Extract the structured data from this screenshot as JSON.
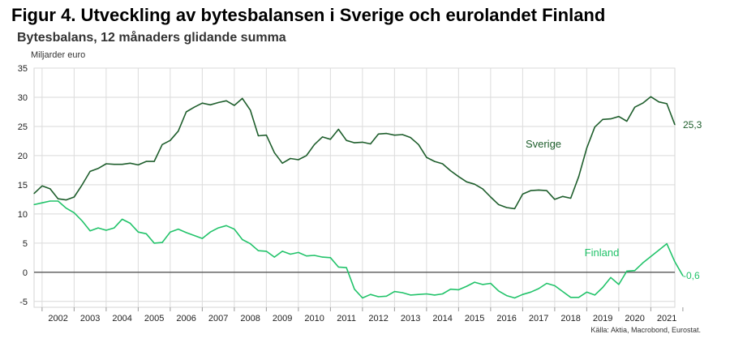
{
  "header": {
    "title": "Figur 4. Utveckling av bytesbalansen i Sverige och eurolandet Finland",
    "subtitle": "Bytesbalans, 12 månaders glidande summa",
    "y_unit": "Miljarder euro"
  },
  "footer": {
    "source": "Källa: Aktia, Macrobond, Eurostat."
  },
  "chart_data": {
    "type": "line",
    "title": "Figur 4. Utveckling av bytesbalansen i Sverige och eurolandet Finland",
    "subtitle": "Bytesbalans, 12 månaders glidande summa",
    "ylabel": "Miljarder euro",
    "xlabel": "",
    "ylim": [
      -6,
      35
    ],
    "xlim": [
      2001.75,
      2021.75
    ],
    "y_ticks": [
      -5,
      0,
      5,
      10,
      15,
      20,
      25,
      30,
      35
    ],
    "x_tick_labels": [
      "2002",
      "2003",
      "2004",
      "2005",
      "2006",
      "2007",
      "2008",
      "2009",
      "2010",
      "2011",
      "2012",
      "2013",
      "2014",
      "2015",
      "2016",
      "2017",
      "2018",
      "2019",
      "2020",
      "2021"
    ],
    "grid": true,
    "zero_line": true,
    "legend": "inline labels",
    "series": [
      {
        "name": "Sverige",
        "color": "#1e5e2c",
        "end_label": "25,3",
        "points": [
          [
            2001.75,
            13.5
          ],
          [
            2002.0,
            14.8
          ],
          [
            2002.25,
            14.3
          ],
          [
            2002.5,
            12.6
          ],
          [
            2002.75,
            12.4
          ],
          [
            2003.0,
            12.9
          ],
          [
            2003.25,
            15.0
          ],
          [
            2003.5,
            17.3
          ],
          [
            2003.75,
            17.8
          ],
          [
            2004.0,
            18.6
          ],
          [
            2004.25,
            18.5
          ],
          [
            2004.5,
            18.5
          ],
          [
            2004.75,
            18.7
          ],
          [
            2005.0,
            18.4
          ],
          [
            2005.25,
            19.0
          ],
          [
            2005.5,
            19.0
          ],
          [
            2005.75,
            21.9
          ],
          [
            2006.0,
            22.6
          ],
          [
            2006.25,
            24.2
          ],
          [
            2006.5,
            27.5
          ],
          [
            2006.75,
            28.3
          ],
          [
            2007.0,
            29.0
          ],
          [
            2007.25,
            28.7
          ],
          [
            2007.5,
            29.1
          ],
          [
            2007.75,
            29.4
          ],
          [
            2008.0,
            28.6
          ],
          [
            2008.25,
            29.8
          ],
          [
            2008.5,
            27.8
          ],
          [
            2008.75,
            23.4
          ],
          [
            2009.0,
            23.5
          ],
          [
            2009.25,
            20.5
          ],
          [
            2009.5,
            18.7
          ],
          [
            2009.75,
            19.5
          ],
          [
            2010.0,
            19.3
          ],
          [
            2010.25,
            20.0
          ],
          [
            2010.5,
            21.9
          ],
          [
            2010.75,
            23.2
          ],
          [
            2011.0,
            22.8
          ],
          [
            2011.25,
            24.5
          ],
          [
            2011.5,
            22.6
          ],
          [
            2011.75,
            22.2
          ],
          [
            2012.0,
            22.3
          ],
          [
            2012.25,
            22.0
          ],
          [
            2012.5,
            23.7
          ],
          [
            2012.75,
            23.8
          ],
          [
            2013.0,
            23.5
          ],
          [
            2013.25,
            23.6
          ],
          [
            2013.5,
            23.1
          ],
          [
            2013.75,
            21.9
          ],
          [
            2014.0,
            19.7
          ],
          [
            2014.25,
            19.0
          ],
          [
            2014.5,
            18.6
          ],
          [
            2014.75,
            17.4
          ],
          [
            2015.0,
            16.4
          ],
          [
            2015.25,
            15.5
          ],
          [
            2015.5,
            15.1
          ],
          [
            2015.75,
            14.3
          ],
          [
            2016.0,
            12.9
          ],
          [
            2016.25,
            11.6
          ],
          [
            2016.5,
            11.1
          ],
          [
            2016.75,
            10.9
          ],
          [
            2017.0,
            13.4
          ],
          [
            2017.25,
            14.0
          ],
          [
            2017.5,
            14.1
          ],
          [
            2017.75,
            14.0
          ],
          [
            2018.0,
            12.5
          ],
          [
            2018.25,
            13.0
          ],
          [
            2018.5,
            12.7
          ],
          [
            2018.75,
            16.4
          ],
          [
            2019.0,
            21.3
          ],
          [
            2019.25,
            24.9
          ],
          [
            2019.5,
            26.2
          ],
          [
            2019.75,
            26.3
          ],
          [
            2020.0,
            26.7
          ],
          [
            2020.25,
            25.9
          ],
          [
            2020.5,
            28.3
          ],
          [
            2020.75,
            29.0
          ],
          [
            2021.0,
            30.1
          ],
          [
            2021.25,
            29.2
          ],
          [
            2021.5,
            28.9
          ],
          [
            2021.75,
            25.3
          ]
        ]
      },
      {
        "name": "Finland",
        "color": "#22c36a",
        "end_label": "-0,6",
        "points": [
          [
            2001.75,
            11.6
          ],
          [
            2002.0,
            11.9
          ],
          [
            2002.25,
            12.2
          ],
          [
            2002.5,
            12.2
          ],
          [
            2002.75,
            11.0
          ],
          [
            2003.0,
            10.2
          ],
          [
            2003.25,
            8.8
          ],
          [
            2003.5,
            7.1
          ],
          [
            2003.75,
            7.6
          ],
          [
            2004.0,
            7.2
          ],
          [
            2004.25,
            7.6
          ],
          [
            2004.5,
            9.1
          ],
          [
            2004.75,
            8.4
          ],
          [
            2005.0,
            6.9
          ],
          [
            2005.25,
            6.6
          ],
          [
            2005.5,
            5.0
          ],
          [
            2005.75,
            5.1
          ],
          [
            2006.0,
            6.9
          ],
          [
            2006.25,
            7.4
          ],
          [
            2006.5,
            6.8
          ],
          [
            2006.75,
            6.3
          ],
          [
            2007.0,
            5.8
          ],
          [
            2007.25,
            6.9
          ],
          [
            2007.5,
            7.6
          ],
          [
            2007.75,
            8.0
          ],
          [
            2008.0,
            7.4
          ],
          [
            2008.25,
            5.6
          ],
          [
            2008.5,
            4.9
          ],
          [
            2008.75,
            3.7
          ],
          [
            2009.0,
            3.6
          ],
          [
            2009.25,
            2.6
          ],
          [
            2009.5,
            3.6
          ],
          [
            2009.75,
            3.1
          ],
          [
            2010.0,
            3.4
          ],
          [
            2010.25,
            2.8
          ],
          [
            2010.5,
            2.9
          ],
          [
            2010.75,
            2.6
          ],
          [
            2011.0,
            2.5
          ],
          [
            2011.25,
            0.9
          ],
          [
            2011.5,
            0.8
          ],
          [
            2011.75,
            -2.9
          ],
          [
            2012.0,
            -4.4
          ],
          [
            2012.25,
            -3.8
          ],
          [
            2012.5,
            -4.2
          ],
          [
            2012.75,
            -4.1
          ],
          [
            2013.0,
            -3.3
          ],
          [
            2013.25,
            -3.5
          ],
          [
            2013.5,
            -3.9
          ],
          [
            2013.75,
            -3.8
          ],
          [
            2014.0,
            -3.7
          ],
          [
            2014.25,
            -3.9
          ],
          [
            2014.5,
            -3.7
          ],
          [
            2014.75,
            -2.9
          ],
          [
            2015.0,
            -3.0
          ],
          [
            2015.25,
            -2.4
          ],
          [
            2015.5,
            -1.7
          ],
          [
            2015.75,
            -2.1
          ],
          [
            2016.0,
            -1.9
          ],
          [
            2016.25,
            -3.2
          ],
          [
            2016.5,
            -4.0
          ],
          [
            2016.75,
            -4.4
          ],
          [
            2017.0,
            -3.8
          ],
          [
            2017.25,
            -3.4
          ],
          [
            2017.5,
            -2.8
          ],
          [
            2017.75,
            -1.9
          ],
          [
            2018.0,
            -2.3
          ],
          [
            2018.25,
            -3.3
          ],
          [
            2018.5,
            -4.3
          ],
          [
            2018.75,
            -4.3
          ],
          [
            2019.0,
            -3.4
          ],
          [
            2019.25,
            -3.9
          ],
          [
            2019.5,
            -2.6
          ],
          [
            2019.75,
            -0.9
          ],
          [
            2020.0,
            -2.1
          ],
          [
            2020.25,
            0.2
          ],
          [
            2020.5,
            0.3
          ],
          [
            2020.75,
            1.6
          ],
          [
            2021.0,
            2.7
          ],
          [
            2021.25,
            3.8
          ],
          [
            2021.5,
            4.9
          ],
          [
            2021.75,
            1.8
          ],
          [
            2022.0,
            -0.6
          ]
        ]
      }
    ]
  }
}
